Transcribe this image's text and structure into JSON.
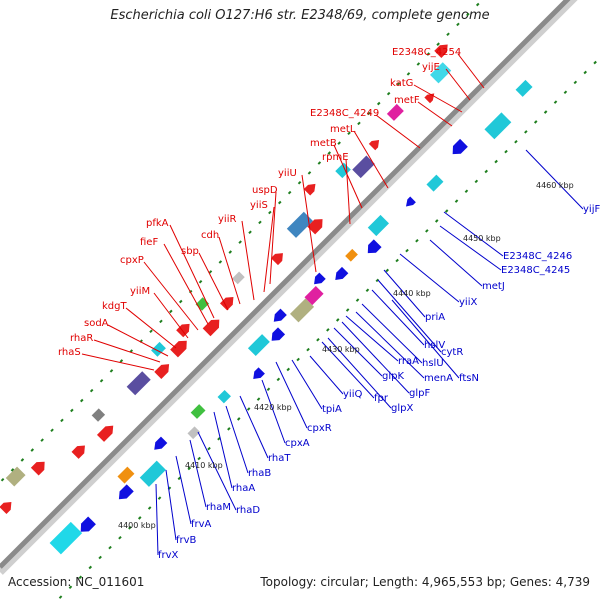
{
  "title": "Escherichia coli O127:H6 str. E2348/69, complete genome",
  "footer": {
    "accession": "Accession: NC_011601",
    "summary": "Topology: circular; Length: 4,965,553 bp; Genes: 4,739"
  },
  "colors": {
    "backbone": "#8a8a8a",
    "upper_label": "#e00000",
    "lower_label": "#0000cc",
    "gene_forward": "#e82020",
    "gene_reverse": "#1010e0",
    "tick_mark": "#1f7f1f"
  },
  "ticks": [
    "4400 kbp",
    "4410 kbp",
    "4420 kbp",
    "4430 kbp",
    "4440 kbp",
    "4450 kbp",
    "4460 kbp"
  ],
  "upper_genes": [
    "E2348C_4254",
    "yijE",
    "katG",
    "metF",
    "E2348C_4249",
    "metL",
    "metB",
    "rpmE",
    "yiiU",
    "uspD",
    "yiiS",
    "yiiR",
    "cdh",
    "sbp",
    "pfkA",
    "fieF",
    "cpxP",
    "yiiM",
    "kdgT",
    "sodA",
    "rhaR",
    "rhaS"
  ],
  "lower_genes": [
    "yijF",
    "E2348C_4246",
    "E2348C_4245",
    "metJ",
    "yiiX",
    "priA",
    "cytR",
    "hslV",
    "ftsN",
    "hslU",
    "menA",
    "rraA",
    "glpF",
    "glpK",
    "glpX",
    "fpr",
    "yiiQ",
    "tpiA",
    "cpxR",
    "cpxA",
    "rhaT",
    "rhaB",
    "rhaA",
    "rhaD",
    "rhaM",
    "frvA",
    "frvB",
    "frvX"
  ]
}
